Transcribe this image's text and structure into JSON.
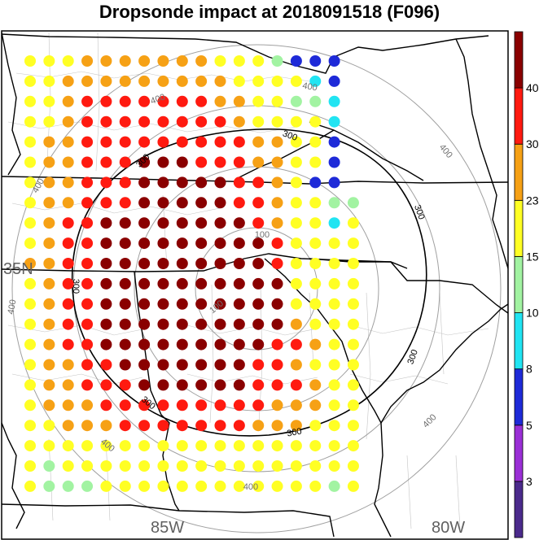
{
  "title": "Dropsonde impact at 2018091518 (F096)",
  "colors": {
    "range_ring": "#a0a0a0",
    "contour_300": "#000000",
    "border": "#000000",
    "county": "#bbbbbb"
  },
  "map_labels": {
    "lat_35": "35N",
    "lon_85": "85W",
    "lon_80": "80W"
  },
  "rings": [
    {
      "label": "100",
      "id": "ring-100"
    },
    {
      "label": "200",
      "id": "ring-200"
    },
    {
      "label": "300",
      "id": "ring-300"
    },
    {
      "label": "400",
      "id": "ring-400"
    }
  ],
  "contour_label": "300",
  "ring_label_400": "400",
  "ring_label_100": "100",
  "colorbar": {
    "levels": [
      {
        "color": "#4b2a8c"
      },
      {
        "color": "#9a2fd6",
        "label": "3"
      },
      {
        "color": "#1e2ad8",
        "label": "5"
      },
      {
        "color": "#21e4f2",
        "label": "8"
      },
      {
        "color": "#a2f3a2",
        "label": "10"
      },
      {
        "color": "#ffff24",
        "label": "15"
      },
      {
        "color": "#f6a115",
        "label": "23"
      },
      {
        "color": "#ff1a10",
        "label": "30"
      },
      {
        "color": "#8a0000",
        "label": "40"
      }
    ]
  },
  "grid": {
    "rows": [
      "YYYOOOOOOOYYYGBBB",
      "YYOOOOOOOOOYYYYCB",
      "YYORRRRRRROOYYGGC",
      "YYORRRRRRRROYYYYC",
      "YOORRRRRRRRROOYYB",
      "YOORRRDDDRRROOYYB",
      "YOORRRDDDDDRROYBB",
      "YOORRRDDDDDRROYYGG",
      "YORRDDDDDDDDROYYCY",
      "YORRDDDDDDDDDRYYYY",
      "OORRDDDDDDDDDRYYYY",
      "YORRDDDDDDDDDDYYYY",
      "YORRDDDDDDDDDDYYYY",
      "YORRDDDDDDDDDDOYYY",
      "YORRDDDDDDDDDRROYY",
      "YOORRDDDDDDDRROYYY",
      "YOORRRDDDDDDRRROYY",
      "YOOORRRRRRRRROOOYY",
      "YYOOORRRRRRROOOYYY",
      "YYYYYYYYYYYYYYYYYY",
      "YGYYYYYYYYYYYYYYYY",
      "YGGGYYYYYYYYYYYYGY"
    ]
  }
}
